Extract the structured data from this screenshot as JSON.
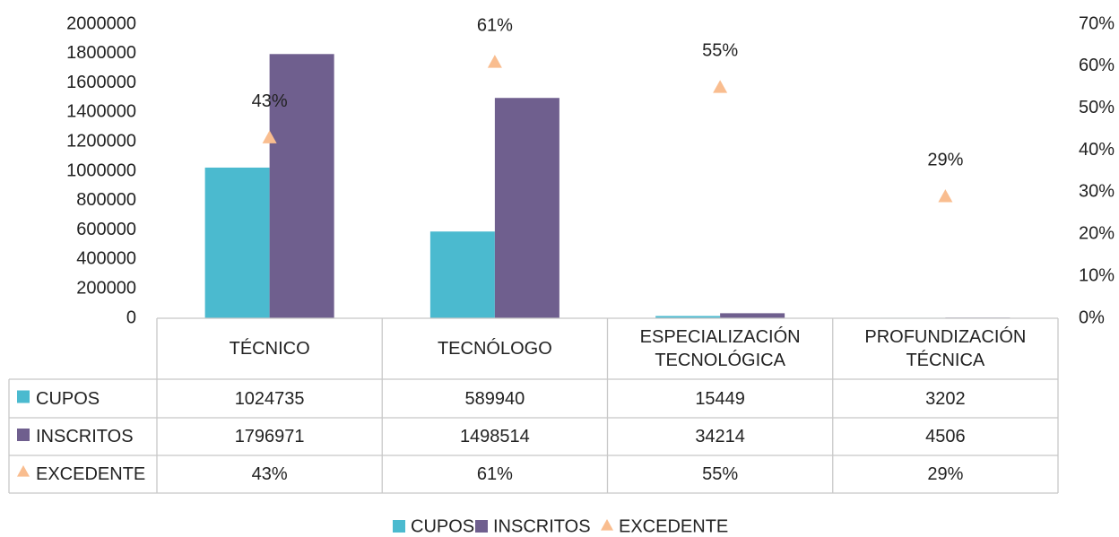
{
  "chart_data": {
    "type": "bar",
    "categories": [
      "TÉCNICO",
      "TECNÓLOGO",
      "ESPECIALIZACIÓN TECNOLÓGICA",
      "PROFUNDIZACIÓN TÉCNICA"
    ],
    "series": [
      {
        "name": "CUPOS",
        "color": "#4bbacf",
        "values": [
          1024735,
          589940,
          15449,
          3202
        ]
      },
      {
        "name": "INSCRITOS",
        "color": "#6f5f8e",
        "values": [
          1796971,
          1498514,
          34214,
          4506
        ]
      },
      {
        "name": "EXCEDENTE",
        "color": "#f9bd8f",
        "axis": "y2",
        "marker": "triangle",
        "values": [
          43,
          61,
          55,
          29
        ],
        "value_labels": [
          "43%",
          "61%",
          "55%",
          "29%"
        ]
      }
    ],
    "ylim": [
      0,
      2000000
    ],
    "yticks": [
      0,
      200000,
      400000,
      600000,
      800000,
      1000000,
      1200000,
      1400000,
      1600000,
      1800000,
      2000000
    ],
    "y2lim": [
      0,
      70
    ],
    "y2ticks": [
      {
        "value": 0,
        "label": "0%"
      },
      {
        "value": 10,
        "label": "10%"
      },
      {
        "value": 20,
        "label": "20%"
      },
      {
        "value": 30,
        "label": "30%"
      },
      {
        "value": 40,
        "label": "40%"
      },
      {
        "value": 50,
        "label": "50%"
      },
      {
        "value": 60,
        "label": "60%"
      },
      {
        "value": 70,
        "label": "70%"
      }
    ],
    "data_table": true,
    "legend": "bottom"
  }
}
